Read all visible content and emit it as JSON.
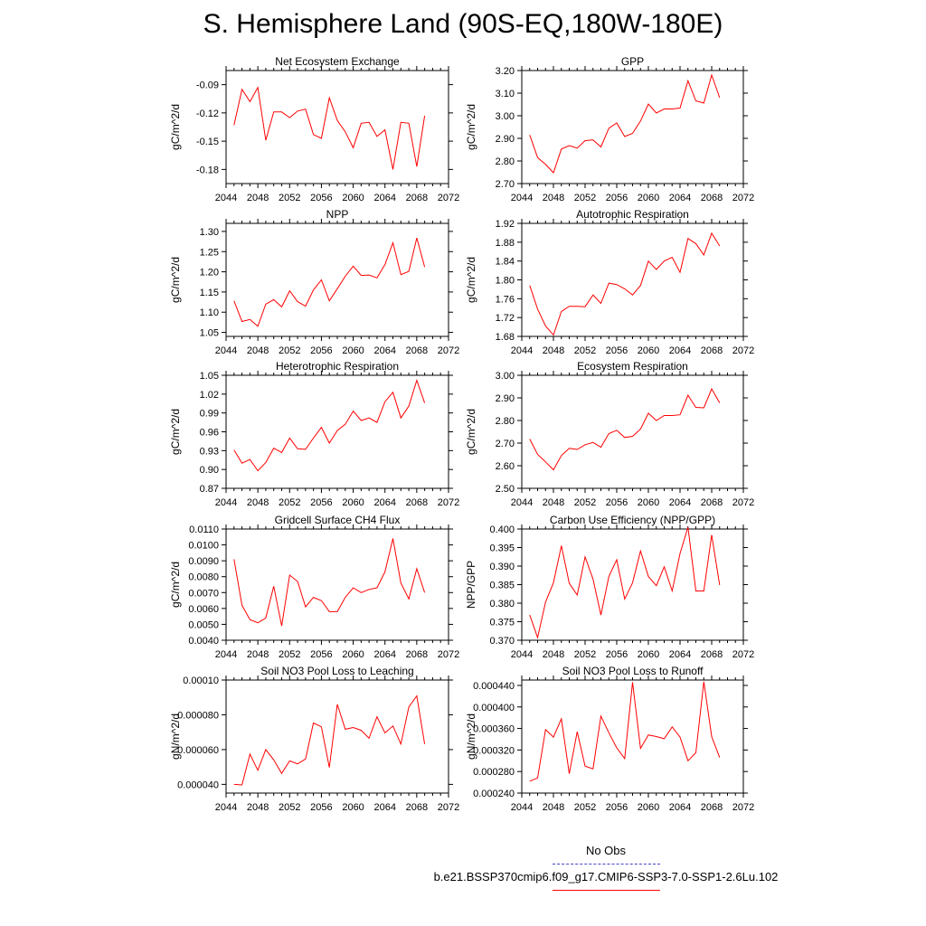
{
  "title": "S. Hemisphere Land (90S-EQ,180W-180E)",
  "legend": {
    "obs_label": "No Obs",
    "case_label": "b.e21.BSSP370cmip6.f09_g17.CMIP6-SSP3-7.0-SSP1-2.6Lu.102",
    "obs_color": "#4444cc",
    "case_color": "#ff0000"
  },
  "chart_data": [
    {
      "type": "line",
      "title": "Net Ecosystem Exchange",
      "ylabel": "gC/m^2/d",
      "xlim": [
        2044,
        2072
      ],
      "xticks": [
        "2044",
        "2048",
        "2052",
        "2056",
        "2060",
        "2064",
        "2068",
        "2072"
      ],
      "ylim": [
        -0.195,
        -0.075
      ],
      "yticks": [
        "-0.18",
        "-0.15",
        "-0.12",
        "-0.09"
      ],
      "x": [
        2045,
        2046,
        2047,
        2048,
        2049,
        2050,
        2051,
        2052,
        2053,
        2054,
        2055,
        2056,
        2057,
        2058,
        2059,
        2060,
        2061,
        2062,
        2063,
        2064,
        2065,
        2066,
        2067,
        2068,
        2069
      ],
      "series": [
        {
          "values": [
            -0.133,
            -0.095,
            -0.108,
            -0.093,
            -0.149,
            -0.119,
            -0.119,
            -0.125,
            -0.118,
            -0.116,
            -0.143,
            -0.147,
            -0.104,
            -0.128,
            -0.14,
            -0.157,
            -0.131,
            -0.13,
            -0.145,
            -0.138,
            -0.18,
            -0.13,
            -0.131,
            -0.177,
            -0.123
          ]
        }
      ]
    },
    {
      "type": "line",
      "title": "GPP",
      "ylabel": "gC/m^2/d",
      "xlim": [
        2044,
        2072
      ],
      "xticks": [
        "2044",
        "2048",
        "2052",
        "2056",
        "2060",
        "2064",
        "2068",
        "2072"
      ],
      "ylim": [
        2.7,
        3.2
      ],
      "yticks": [
        "2.70",
        "2.80",
        "2.90",
        "3.00",
        "3.10",
        "3.20"
      ],
      "x": [
        2045,
        2046,
        2047,
        2048,
        2049,
        2050,
        2051,
        2052,
        2053,
        2054,
        2055,
        2056,
        2057,
        2058,
        2059,
        2060,
        2061,
        2062,
        2063,
        2064,
        2065,
        2066,
        2067,
        2068,
        2069
      ],
      "series": [
        {
          "values": [
            2.915,
            2.815,
            2.785,
            2.748,
            2.853,
            2.868,
            2.857,
            2.89,
            2.893,
            2.862,
            2.945,
            2.968,
            2.908,
            2.922,
            2.977,
            3.052,
            3.012,
            3.03,
            3.03,
            3.034,
            3.155,
            3.066,
            3.056,
            3.18,
            3.08
          ]
        }
      ]
    },
    {
      "type": "line",
      "title": "NPP",
      "ylabel": "gC/m^2/d",
      "xlim": [
        2044,
        2072
      ],
      "xticks": [
        "2044",
        "2048",
        "2052",
        "2056",
        "2060",
        "2064",
        "2068",
        "2072"
      ],
      "ylim": [
        1.04,
        1.32
      ],
      "yticks": [
        "1.05",
        "1.10",
        "1.15",
        "1.20",
        "1.25",
        "1.30"
      ],
      "x": [
        2045,
        2046,
        2047,
        2048,
        2049,
        2050,
        2051,
        2052,
        2053,
        2054,
        2055,
        2056,
        2057,
        2058,
        2059,
        2060,
        2061,
        2062,
        2063,
        2064,
        2065,
        2066,
        2067,
        2068,
        2069
      ],
      "series": [
        {
          "values": [
            1.128,
            1.077,
            1.082,
            1.065,
            1.12,
            1.131,
            1.113,
            1.153,
            1.126,
            1.115,
            1.155,
            1.18,
            1.128,
            1.158,
            1.189,
            1.214,
            1.191,
            1.192,
            1.185,
            1.218,
            1.272,
            1.193,
            1.201,
            1.284,
            1.212
          ]
        }
      ]
    },
    {
      "type": "line",
      "title": "Autotrophic Respiration",
      "ylabel": "gC/m^2/d",
      "xlim": [
        2044,
        2072
      ],
      "xticks": [
        "2044",
        "2048",
        "2052",
        "2056",
        "2060",
        "2064",
        "2068",
        "2072"
      ],
      "ylim": [
        1.68,
        1.92
      ],
      "yticks": [
        "1.68",
        "1.72",
        "1.76",
        "1.80",
        "1.84",
        "1.88",
        "1.92"
      ],
      "x": [
        2045,
        2046,
        2047,
        2048,
        2049,
        2050,
        2051,
        2052,
        2053,
        2054,
        2055,
        2056,
        2057,
        2058,
        2059,
        2060,
        2061,
        2062,
        2063,
        2064,
        2065,
        2066,
        2067,
        2068,
        2069
      ],
      "series": [
        {
          "values": [
            1.788,
            1.738,
            1.702,
            1.683,
            1.733,
            1.744,
            1.744,
            1.743,
            1.768,
            1.75,
            1.793,
            1.79,
            1.781,
            1.768,
            1.788,
            1.84,
            1.822,
            1.84,
            1.848,
            1.816,
            1.888,
            1.877,
            1.853,
            1.899,
            1.872
          ]
        }
      ]
    },
    {
      "type": "line",
      "title": "Heterotrophic Respiration",
      "ylabel": "gC/m^2/d",
      "xlim": [
        2044,
        2072
      ],
      "xticks": [
        "2044",
        "2048",
        "2052",
        "2056",
        "2060",
        "2064",
        "2068",
        "2072"
      ],
      "ylim": [
        0.87,
        1.05
      ],
      "yticks": [
        "0.87",
        "0.90",
        "0.93",
        "0.96",
        "0.99",
        "1.02",
        "1.05"
      ],
      "x": [
        2045,
        2046,
        2047,
        2048,
        2049,
        2050,
        2051,
        2052,
        2053,
        2054,
        2055,
        2056,
        2057,
        2058,
        2059,
        2060,
        2061,
        2062,
        2063,
        2064,
        2065,
        2066,
        2067,
        2068,
        2069
      ],
      "series": [
        {
          "values": [
            0.931,
            0.91,
            0.916,
            0.898,
            0.911,
            0.934,
            0.927,
            0.95,
            0.933,
            0.932,
            0.95,
            0.967,
            0.942,
            0.962,
            0.972,
            0.993,
            0.978,
            0.982,
            0.975,
            1.008,
            1.023,
            0.982,
            1.001,
            1.042,
            1.006
          ]
        }
      ]
    },
    {
      "type": "line",
      "title": "Ecosystem Respiration",
      "ylabel": "gC/m^2/d",
      "xlim": [
        2044,
        2072
      ],
      "xticks": [
        "2044",
        "2048",
        "2052",
        "2056",
        "2060",
        "2064",
        "2068",
        "2072"
      ],
      "ylim": [
        2.5,
        3.0
      ],
      "yticks": [
        "2.50",
        "2.60",
        "2.70",
        "2.80",
        "2.90",
        "3.00"
      ],
      "x": [
        2045,
        2046,
        2047,
        2048,
        2049,
        2050,
        2051,
        2052,
        2053,
        2054,
        2055,
        2056,
        2057,
        2058,
        2059,
        2060,
        2061,
        2062,
        2063,
        2064,
        2065,
        2066,
        2067,
        2068,
        2069
      ],
      "series": [
        {
          "values": [
            2.718,
            2.65,
            2.617,
            2.582,
            2.645,
            2.677,
            2.672,
            2.693,
            2.703,
            2.682,
            2.742,
            2.757,
            2.725,
            2.73,
            2.762,
            2.832,
            2.8,
            2.822,
            2.822,
            2.825,
            2.912,
            2.858,
            2.856,
            2.94,
            2.878
          ]
        }
      ]
    },
    {
      "type": "line",
      "title": "Gridcell Surface CH4 Flux",
      "ylabel": "gC/m^2/d",
      "xlim": [
        2044,
        2072
      ],
      "xticks": [
        "2044",
        "2048",
        "2052",
        "2056",
        "2060",
        "2064",
        "2068",
        "2072"
      ],
      "ylim": [
        0.004,
        0.011
      ],
      "yticks": [
        "0.0040",
        "0.0050",
        "0.0060",
        "0.0070",
        "0.0080",
        "0.0090",
        "0.0100",
        "0.0110"
      ],
      "x": [
        2045,
        2046,
        2047,
        2048,
        2049,
        2050,
        2051,
        2052,
        2053,
        2054,
        2055,
        2056,
        2057,
        2058,
        2059,
        2060,
        2061,
        2062,
        2063,
        2064,
        2065,
        2066,
        2067,
        2068,
        2069
      ],
      "series": [
        {
          "values": [
            0.0091,
            0.0062,
            0.0053,
            0.0051,
            0.0054,
            0.0074,
            0.0049,
            0.0081,
            0.0077,
            0.0061,
            0.0067,
            0.0065,
            0.0058,
            0.0058,
            0.0067,
            0.0073,
            0.007,
            0.0072,
            0.0073,
            0.0083,
            0.0104,
            0.0076,
            0.0066,
            0.0085,
            0.007
          ]
        }
      ]
    },
    {
      "type": "line",
      "title": "Carbon Use Efficiency (NPP/GPP)",
      "ylabel": "NPP/GPP",
      "xlim": [
        2044,
        2072
      ],
      "xticks": [
        "2044",
        "2048",
        "2052",
        "2056",
        "2060",
        "2064",
        "2068",
        "2072"
      ],
      "ylim": [
        0.37,
        0.4
      ],
      "yticks": [
        "0.370",
        "0.375",
        "0.380",
        "0.385",
        "0.390",
        "0.395",
        "0.400"
      ],
      "x": [
        2045,
        2046,
        2047,
        2048,
        2049,
        2050,
        2051,
        2052,
        2053,
        2054,
        2055,
        2056,
        2057,
        2058,
        2059,
        2060,
        2061,
        2062,
        2063,
        2064,
        2065,
        2066,
        2067,
        2068,
        2069
      ],
      "series": [
        {
          "values": [
            0.3768,
            0.3707,
            0.3803,
            0.3855,
            0.3955,
            0.3854,
            0.3822,
            0.3925,
            0.3865,
            0.3768,
            0.3872,
            0.3917,
            0.3811,
            0.3855,
            0.3941,
            0.3872,
            0.3847,
            0.3898,
            0.3833,
            0.3934,
            0.4005,
            0.3833,
            0.3833,
            0.3984,
            0.3849
          ]
        }
      ]
    },
    {
      "type": "line",
      "title": "Soil NO3 Pool Loss to Leaching",
      "ylabel": "gN/m^2/d",
      "xlim": [
        2044,
        2072
      ],
      "xticks": [
        "2044",
        "2048",
        "2052",
        "2056",
        "2060",
        "2064",
        "2068",
        "2072"
      ],
      "ylim": [
        3.5e-05,
        0.0001
      ],
      "yticks": [
        "0.000040",
        "0.000060",
        "0.000080",
        "0.00010"
      ],
      "x": [
        2045,
        2046,
        2047,
        2048,
        2049,
        2050,
        2051,
        2052,
        2053,
        2054,
        2055,
        2056,
        2057,
        2058,
        2059,
        2060,
        2061,
        2062,
        2063,
        2064,
        2065,
        2066,
        2067,
        2068,
        2069
      ],
      "series": [
        {
          "values": [
            4e-05,
            3.97e-05,
            5.74e-05,
            4.81e-05,
            6e-05,
            5.41e-05,
            4.63e-05,
            5.35e-05,
            5.18e-05,
            5.46e-05,
            7.53e-05,
            7.31e-05,
            4.97e-05,
            8.6e-05,
            7.17e-05,
            7.27e-05,
            7.11e-05,
            6.65e-05,
            7.89e-05,
            6.96e-05,
            7.36e-05,
            6.32e-05,
            8.45e-05,
            9.09e-05,
            6.32e-05
          ]
        }
      ]
    },
    {
      "type": "line",
      "title": "Soil NO3 Pool Loss to Runoff",
      "ylabel": "gN/m^2/d",
      "xlim": [
        2044,
        2072
      ],
      "xticks": [
        "2044",
        "2048",
        "2052",
        "2056",
        "2060",
        "2064",
        "2068",
        "2072"
      ],
      "ylim": [
        0.00024,
        0.00045
      ],
      "yticks": [
        "0.000240",
        "0.000280",
        "0.000320",
        "0.000360",
        "0.000400",
        "0.000440"
      ],
      "x": [
        2045,
        2046,
        2047,
        2048,
        2049,
        2050,
        2051,
        2052,
        2053,
        2054,
        2055,
        2056,
        2057,
        2058,
        2059,
        2060,
        2061,
        2062,
        2063,
        2064,
        2065,
        2066,
        2067,
        2068,
        2069
      ],
      "series": [
        {
          "values": [
            0.000262,
            0.000268,
            0.000358,
            0.000344,
            0.000378,
            0.000276,
            0.000354,
            0.00029,
            0.000285,
            0.000383,
            0.000352,
            0.000324,
            0.000304,
            0.000446,
            0.000323,
            0.000348,
            0.000345,
            0.000341,
            0.000363,
            0.000344,
            0.0003,
            0.000315,
            0.000447,
            0.000345,
            0.000306
          ]
        }
      ]
    }
  ]
}
